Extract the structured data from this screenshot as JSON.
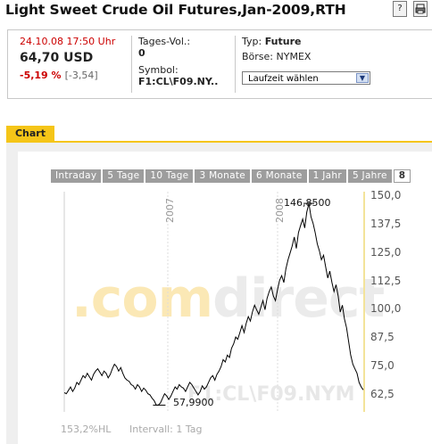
{
  "header": {
    "title": "Light Sweet Crude Oil Futures,Jan-2009,RTH",
    "help_icon": "?",
    "print_icon": "print-icon"
  },
  "quote": {
    "timestamp": "24.10.08 17:50 Uhr",
    "price": "64,70 USD",
    "change_pct": "-5,19 %",
    "change_abs": "[-3,54]",
    "volume_label": "Tages-Vol.:",
    "volume_value": "0",
    "symbol_label": "Symbol:",
    "symbol_value": "F1:CL\\F09.NY..",
    "type_label": "Typ:",
    "type_value": "Future",
    "exchange_label": "Börse:",
    "exchange_value": "NYMEX",
    "select_value": "Laufzeit wählen"
  },
  "colors": {
    "negative": "#cc0000",
    "accent_tab": "#f5c518",
    "line": "#000000"
  },
  "chart_section": {
    "tab_label": "Chart",
    "range_tabs": [
      "Intraday",
      "5 Tage",
      "10 Tage",
      "3 Monate",
      "6 Monate",
      "1 Jahr",
      "5 Jahre",
      "8"
    ],
    "watermark_a": ".com",
    "watermark_b": "direct",
    "watermark_symbol": "F1:CL\\F09.NYM",
    "footer_left": "153,2%HL",
    "footer_right": "Intervall: 1 Tag"
  },
  "chart_data": {
    "type": "line",
    "x_labels": [
      "2007",
      "2008"
    ],
    "y_ticks": [
      "150,0",
      "137,5",
      "125,0",
      "112,5",
      "100,0",
      "87,5",
      "75,0",
      "62,5"
    ],
    "ylim": [
      55,
      152
    ],
    "annotations": {
      "high": "146,8500",
      "low": "57,9900"
    },
    "values": [
      63.5,
      63,
      64.5,
      66,
      64,
      65.5,
      68,
      67,
      69,
      71,
      70,
      72,
      70.5,
      69,
      71.5,
      73,
      74,
      72.5,
      71,
      73,
      72,
      70,
      71.5,
      74,
      76,
      75,
      73,
      74.5,
      72,
      70,
      69,
      68.5,
      67,
      66.5,
      65,
      67,
      66,
      64,
      65.5,
      64.5,
      63,
      62.5,
      61,
      60,
      58,
      57.99,
      59,
      61,
      63,
      62,
      60.5,
      62,
      64,
      66,
      65,
      67,
      66,
      65.5,
      64,
      66,
      68,
      67,
      65.5,
      64,
      62.5,
      64,
      66.5,
      65,
      66,
      68,
      70,
      71,
      69,
      71.5,
      73,
      75,
      78,
      77,
      80,
      79,
      83,
      85,
      88,
      87,
      90,
      93,
      90,
      94,
      97,
      95,
      99,
      102,
      100,
      98,
      101,
      104,
      100,
      105,
      108,
      110,
      106,
      104,
      109,
      113,
      115,
      112,
      118,
      122,
      125,
      128,
      132,
      127,
      134,
      137,
      140,
      136,
      143,
      146.85,
      141,
      138,
      134,
      129,
      126,
      122,
      124,
      119,
      114,
      117,
      112,
      108,
      111,
      106,
      99,
      102,
      96,
      92,
      86,
      80,
      76,
      74,
      72,
      68,
      66,
      64.7
    ]
  }
}
